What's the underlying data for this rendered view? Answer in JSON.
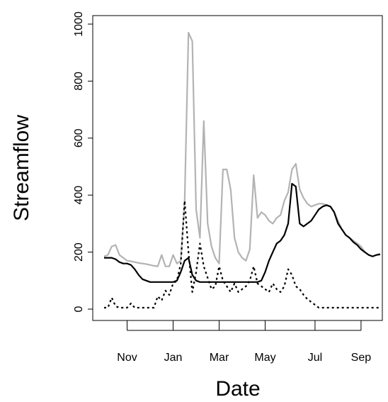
{
  "chart_data": {
    "type": "line",
    "x_label": "Date",
    "y_label": "Streamflow",
    "categories": [
      null,
      null,
      null,
      null,
      null,
      null,
      "Nov",
      null,
      null,
      null,
      null,
      null,
      null,
      null,
      null,
      null,
      null,
      null,
      "Jan",
      null,
      null,
      null,
      null,
      null,
      null,
      null,
      null,
      null,
      null,
      null,
      "Mar",
      null,
      null,
      null,
      null,
      null,
      null,
      null,
      null,
      null,
      null,
      null,
      "May",
      null,
      null,
      null,
      null,
      null,
      null,
      null,
      null,
      null,
      null,
      null,
      null,
      "Jul",
      null,
      null,
      null,
      null,
      null,
      null,
      null,
      null,
      null,
      null,
      null,
      "Sep",
      null,
      null,
      null,
      null,
      null
    ],
    "ylim": [
      0,
      1000
    ],
    "yticks": [
      0,
      200,
      400,
      600,
      800,
      1000
    ],
    "series": [
      {
        "color": "#b3b3b3",
        "linestyle": "solid",
        "values": [
          185,
          190,
          220,
          225,
          190,
          180,
          170,
          168,
          165,
          162,
          160,
          158,
          155,
          152,
          150,
          190,
          150,
          150,
          190,
          160,
          170,
          380,
          970,
          940,
          350,
          250,
          660,
          300,
          220,
          180,
          160,
          490,
          490,
          420,
          250,
          200,
          180,
          170,
          210,
          470,
          320,
          340,
          330,
          310,
          300,
          320,
          330,
          380,
          410,
          490,
          510,
          420,
          390,
          370,
          360,
          365,
          370,
          370,
          365,
          360,
          340,
          310,
          280,
          260,
          250,
          240,
          230,
          220,
          200,
          190,
          185,
          190,
          195
        ]
      },
      {
        "color": "#000000",
        "linestyle": "solid",
        "values": [
          180,
          180,
          180,
          175,
          165,
          160,
          160,
          155,
          140,
          120,
          105,
          100,
          95,
          95,
          95,
          95,
          95,
          95,
          95,
          100,
          130,
          170,
          180,
          120,
          100,
          95,
          95,
          95,
          95,
          95,
          95,
          95,
          95,
          95,
          95,
          95,
          95,
          95,
          95,
          95,
          95,
          100,
          130,
          170,
          200,
          230,
          240,
          260,
          300,
          440,
          430,
          300,
          290,
          300,
          310,
          330,
          350,
          360,
          365,
          360,
          340,
          300,
          280,
          260,
          250,
          235,
          225,
          210,
          200,
          190,
          185,
          190,
          192
        ]
      },
      {
        "color": "#000000",
        "linestyle": "dashed",
        "values": [
          5,
          5,
          40,
          10,
          5,
          5,
          5,
          20,
          5,
          5,
          5,
          5,
          5,
          5,
          45,
          30,
          65,
          50,
          90,
          100,
          160,
          380,
          200,
          60,
          130,
          230,
          150,
          110,
          70,
          80,
          150,
          100,
          80,
          60,
          90,
          60,
          70,
          80,
          100,
          150,
          90,
          80,
          70,
          60,
          90,
          70,
          60,
          80,
          140,
          120,
          80,
          70,
          50,
          35,
          25,
          15,
          5,
          5,
          5,
          5,
          5,
          5,
          5,
          5,
          5,
          5,
          5,
          5,
          5,
          5,
          5,
          5,
          5
        ]
      }
    ]
  }
}
